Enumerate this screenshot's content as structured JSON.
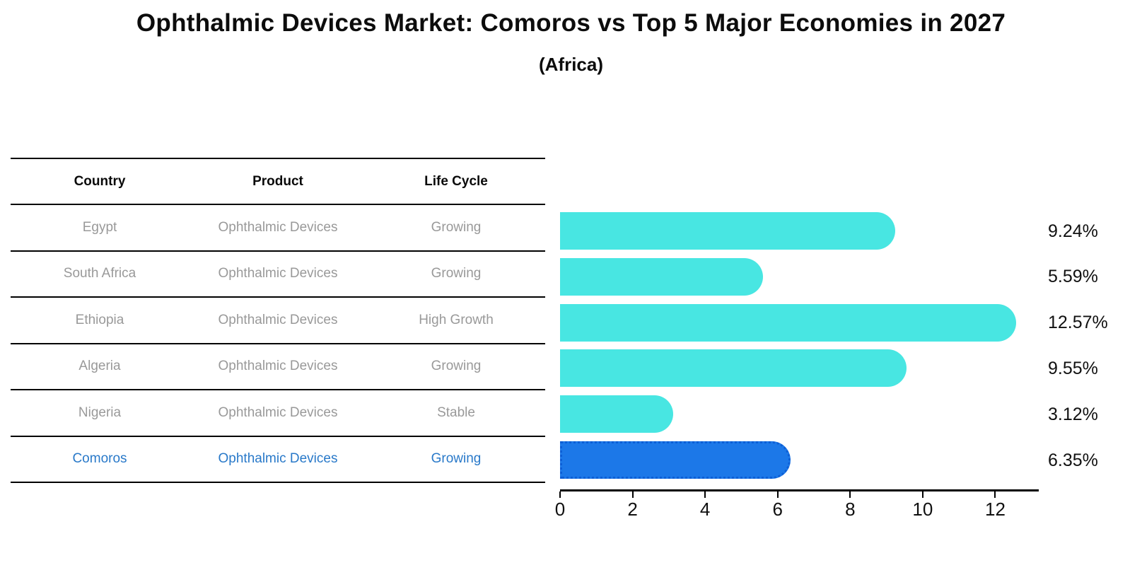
{
  "header": {
    "title": "Ophthalmic Devices Market: Comoros vs Top 5 Major Economies in 2027",
    "subtitle": "(Africa)"
  },
  "table": {
    "headers": [
      "Country",
      "Product",
      "Life Cycle"
    ],
    "rows": [
      {
        "country": "Egypt",
        "product": "Ophthalmic Devices",
        "life_cycle": "Growing"
      },
      {
        "country": "South Africa",
        "product": "Ophthalmic Devices",
        "life_cycle": "Growing"
      },
      {
        "country": "Ethiopia",
        "product": "Ophthalmic Devices",
        "life_cycle": "High Growth"
      },
      {
        "country": "Algeria",
        "product": "Ophthalmic Devices",
        "life_cycle": "Growing"
      },
      {
        "country": "Nigeria",
        "product": "Ophthalmic Devices",
        "life_cycle": "Stable"
      },
      {
        "country": "Comoros",
        "product": "Ophthalmic Devices",
        "life_cycle": "Growing"
      }
    ]
  },
  "chart_data": {
    "type": "bar",
    "orientation": "horizontal",
    "title": "Ophthalmic Devices Market: Comoros vs Top 5 Major Economies in 2027",
    "subtitle": "(Africa)",
    "categories": [
      "Egypt",
      "South Africa",
      "Ethiopia",
      "Algeria",
      "Nigeria",
      "Comoros"
    ],
    "values": [
      9.24,
      5.59,
      12.57,
      9.55,
      3.12,
      6.35
    ],
    "value_labels": [
      "9.24%",
      "5.59%",
      "12.57%",
      "9.55%",
      "3.12%",
      "6.35%"
    ],
    "highlight_index": 5,
    "xlabel": "",
    "ylabel": "",
    "xticks": [
      0,
      2,
      4,
      6,
      8,
      10,
      12
    ],
    "xlim": [
      0,
      13.2
    ],
    "grid": false,
    "legend": false,
    "colors": {
      "bar_default": "#48e6e2",
      "bar_highlight": "#1c78e8",
      "bar_highlight_border": "#0d5fd6",
      "highlight_text": "#2979c9",
      "table_text": "#999999",
      "axis_text": "#111111"
    }
  }
}
